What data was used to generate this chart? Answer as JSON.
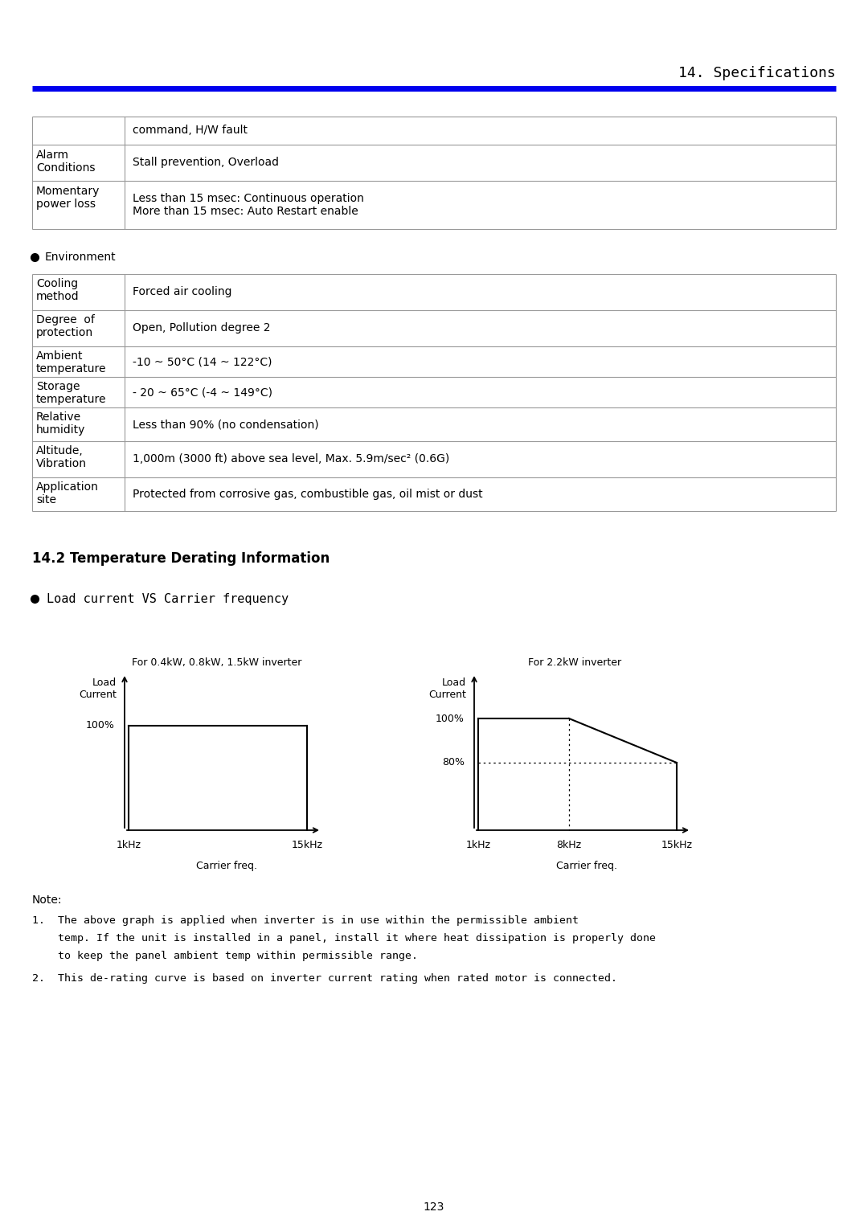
{
  "page_title": "14. Specifications",
  "blue_line_color": "#0000EE",
  "bg_color": "#FFFFFF",
  "table1_rows": [
    [
      "",
      "command, H/W fault"
    ],
    [
      "Alarm\nConditions",
      "Stall prevention, Overload"
    ],
    [
      "Momentary\npower loss",
      "Less than 15 msec: Continuous operation\nMore than 15 msec: Auto Restart enable"
    ]
  ],
  "bullet_env": "Environment",
  "table2_rows": [
    [
      "Cooling\nmethod",
      "Forced air cooling"
    ],
    [
      "Degree  of\nprotection",
      "Open, Pollution degree 2"
    ],
    [
      "Ambient\ntemperature",
      "-10 ~ 50°C (14 ~ 122°C)"
    ],
    [
      "Storage\ntemperature",
      "- 20 ~ 65°C (-4 ~ 149°C)"
    ],
    [
      "Relative\nhumidity",
      "Less than 90% (no condensation)"
    ],
    [
      "Altitude,\nVibration",
      "1,000m (3000 ft) above sea level, Max. 5.9m/sec² (0.6G)"
    ],
    [
      "Application\nsite",
      "Protected from corrosive gas, combustible gas, oil mist or dust"
    ]
  ],
  "section_title": "14.2 Temperature Derating Information",
  "bullet_load": "Load current VS Carrier frequency",
  "graph1_title": "For 0.4kW, 0.8kW, 1.5kW inverter",
  "graph2_title": "For 2.2kW inverter",
  "graph1_ylabel": "Load\nCurrent",
  "graph2_ylabel": "Load\nCurrent",
  "graph_xlabel": "Carrier freq.",
  "g1_xticks": [
    "1kHz",
    "15kHz"
  ],
  "g2_xticks": [
    "1kHz",
    "8kHz",
    "15kHz"
  ],
  "g1_100": "100%",
  "g2_100": "100%",
  "g2_80": "80%",
  "note_title": "Note:",
  "note1_prefix": "1.  ",
  "note1_line1": "The above graph is applied when inverter is in use within the permissible ambient",
  "note1_line2": "    temp. If the unit is installed in a panel, install it where heat dissipation is properly done",
  "note1_line3": "    to keep the panel ambient temp within permissible range.",
  "note2": "2.  This de-rating curve is based on inverter current rating when rated motor is connected.",
  "page_num": "123",
  "table_line_color": "#999999",
  "black": "#000000"
}
